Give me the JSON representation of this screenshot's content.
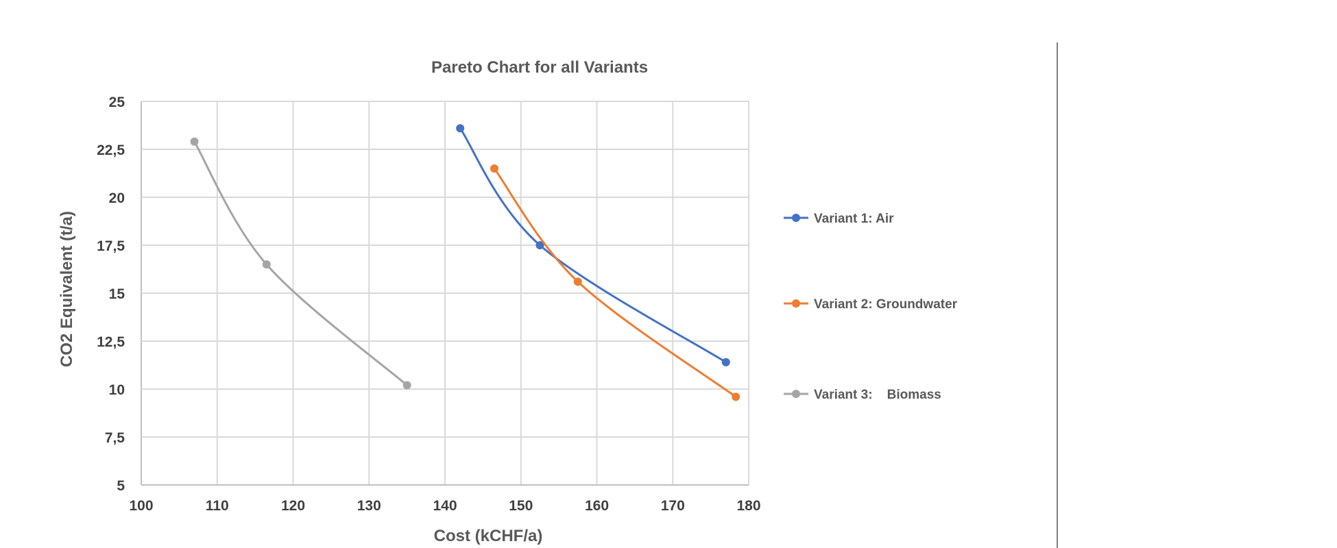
{
  "chart_data": {
    "type": "line",
    "title": "Pareto Chart for all Variants",
    "xlabel": "Cost (kCHF/a)",
    "ylabel": "CO2 Equivalent (t/a)",
    "xlim": [
      100,
      180
    ],
    "ylim": [
      5,
      25
    ],
    "x_ticks": [
      "100",
      "110",
      "120",
      "130",
      "140",
      "150",
      "160",
      "170",
      "180"
    ],
    "y_ticks": [
      "5",
      "7,5",
      "10",
      "12,5",
      "15",
      "17,5",
      "20",
      "22,5",
      "25"
    ],
    "grid": true,
    "legend_position": "right",
    "series": [
      {
        "name": "Variant 1: Air",
        "color": "#4472c4",
        "x": [
          142,
          152.5,
          177
        ],
        "y": [
          23.6,
          17.5,
          11.4
        ]
      },
      {
        "name": "Variant 2: Groundwater",
        "color": "#ed7d31",
        "x": [
          146.5,
          157.5,
          178.3
        ],
        "y": [
          21.5,
          15.6,
          9.6
        ]
      },
      {
        "name": "Variant 3:    Biomass",
        "color": "#a5a5a5",
        "x": [
          107,
          116.5,
          135
        ],
        "y": [
          22.9,
          16.5,
          10.2
        ]
      }
    ]
  }
}
